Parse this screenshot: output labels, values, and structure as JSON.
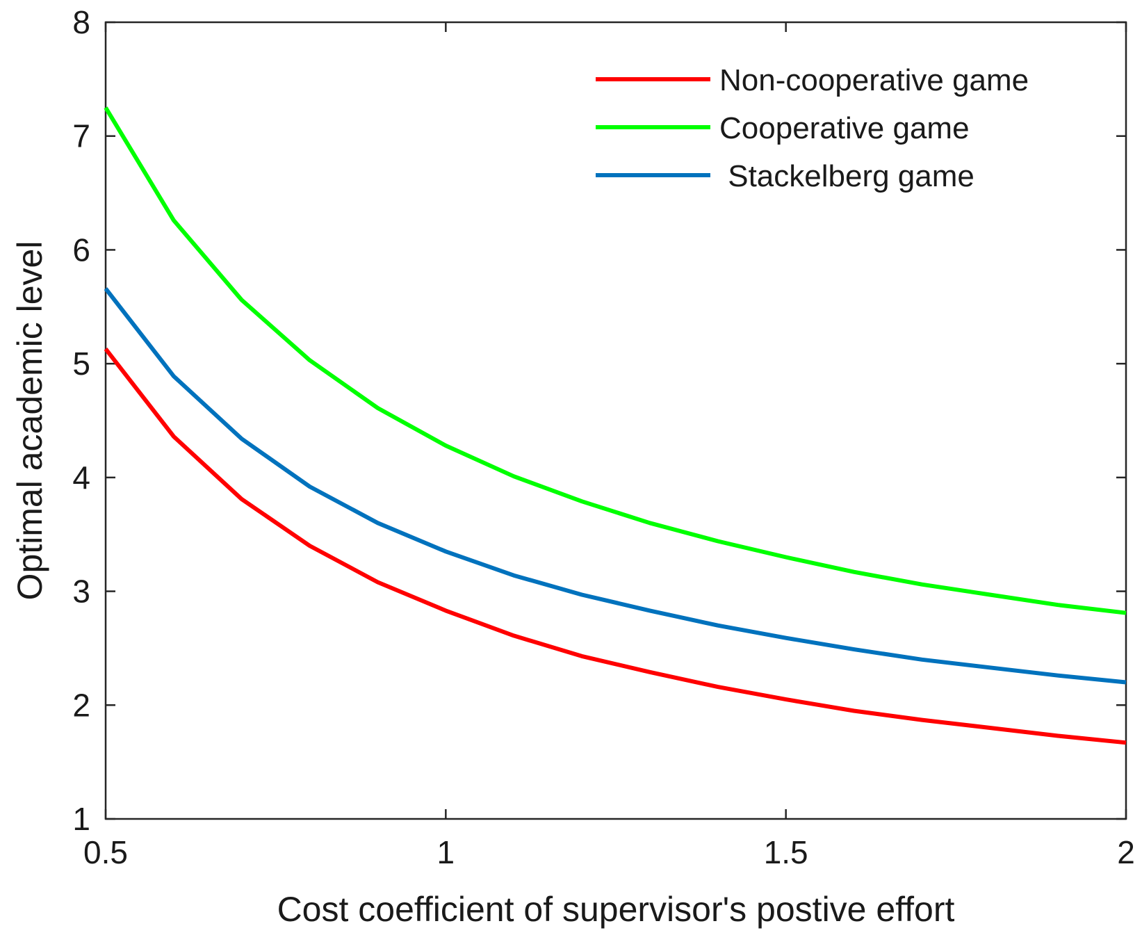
{
  "chart_data": {
    "type": "line",
    "title": "",
    "xlabel": "Cost coefficient of supervisor's postive effort",
    "ylabel": "Optimal academic level",
    "xlim": [
      0.5,
      2
    ],
    "ylim": [
      1,
      8
    ],
    "xticks": [
      0.5,
      1,
      1.5,
      2
    ],
    "xtick_labels": [
      "0.5",
      "1",
      "1.5",
      "2"
    ],
    "yticks": [
      1,
      2,
      3,
      4,
      5,
      6,
      7,
      8
    ],
    "ytick_labels": [
      "1",
      "2",
      "3",
      "4",
      "5",
      "6",
      "7",
      "8"
    ],
    "grid": false,
    "legend_position": "top-right",
    "x": [
      0.5,
      0.6,
      0.7,
      0.8,
      0.9,
      1.0,
      1.1,
      1.2,
      1.3,
      1.4,
      1.5,
      1.6,
      1.7,
      1.8,
      1.9,
      2.0
    ],
    "series": [
      {
        "name": "Non-cooperative game",
        "color": "#ff0000",
        "values": [
          5.13,
          4.36,
          3.81,
          3.4,
          3.08,
          2.83,
          2.61,
          2.43,
          2.29,
          2.16,
          2.05,
          1.95,
          1.87,
          1.8,
          1.73,
          1.67
        ]
      },
      {
        "name": "Cooperative game",
        "color": "#00ff00",
        "values": [
          7.25,
          6.26,
          5.56,
          5.03,
          4.61,
          4.28,
          4.01,
          3.79,
          3.6,
          3.44,
          3.3,
          3.17,
          3.06,
          2.97,
          2.88,
          2.81
        ]
      },
      {
        "name": " Stackelberg game",
        "color": "#0072bd",
        "values": [
          5.66,
          4.89,
          4.34,
          3.92,
          3.6,
          3.35,
          3.14,
          2.97,
          2.83,
          2.7,
          2.59,
          2.49,
          2.4,
          2.33,
          2.26,
          2.2
        ]
      }
    ]
  }
}
